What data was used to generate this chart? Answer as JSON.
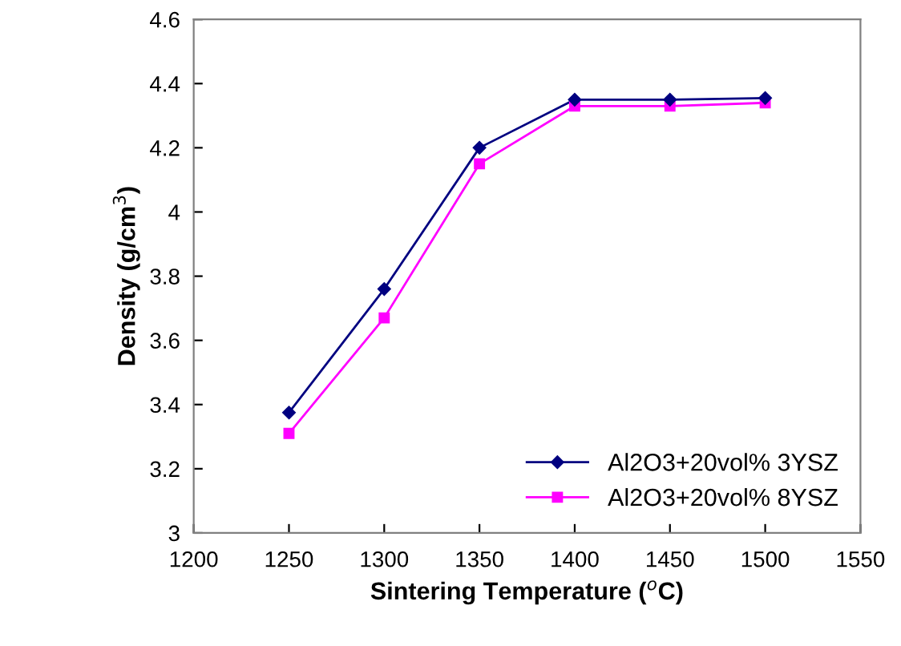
{
  "chart_data": {
    "type": "line",
    "xlabel": "Sintering Temperature ($^{o}$C)",
    "ylabel": "Density (g/cm$^{3}$)",
    "x": [
      1250,
      1300,
      1350,
      1400,
      1450,
      1500
    ],
    "series": [
      {
        "name": "Al2O3+20vol% 3YSZ",
        "color": "#000080",
        "marker": "diamond",
        "values": [
          3.375,
          3.76,
          4.2,
          4.35,
          4.35,
          4.355
        ]
      },
      {
        "name": "Al2O3+20vol% 8YSZ",
        "color": "#ff00ff",
        "marker": "square",
        "values": [
          3.31,
          3.67,
          4.15,
          4.33,
          4.33,
          4.34
        ]
      }
    ],
    "xlim": [
      1200,
      1550
    ],
    "xticks": [
      1200,
      1250,
      1300,
      1350,
      1400,
      1450,
      1500,
      1550
    ],
    "ylim": [
      3,
      4.6
    ],
    "yticks": [
      3,
      3.2,
      3.4,
      3.6,
      3.8,
      4,
      4.2,
      4.4,
      4.6
    ],
    "grid": false,
    "legend": "bottom right",
    "line_style": "solid"
  }
}
